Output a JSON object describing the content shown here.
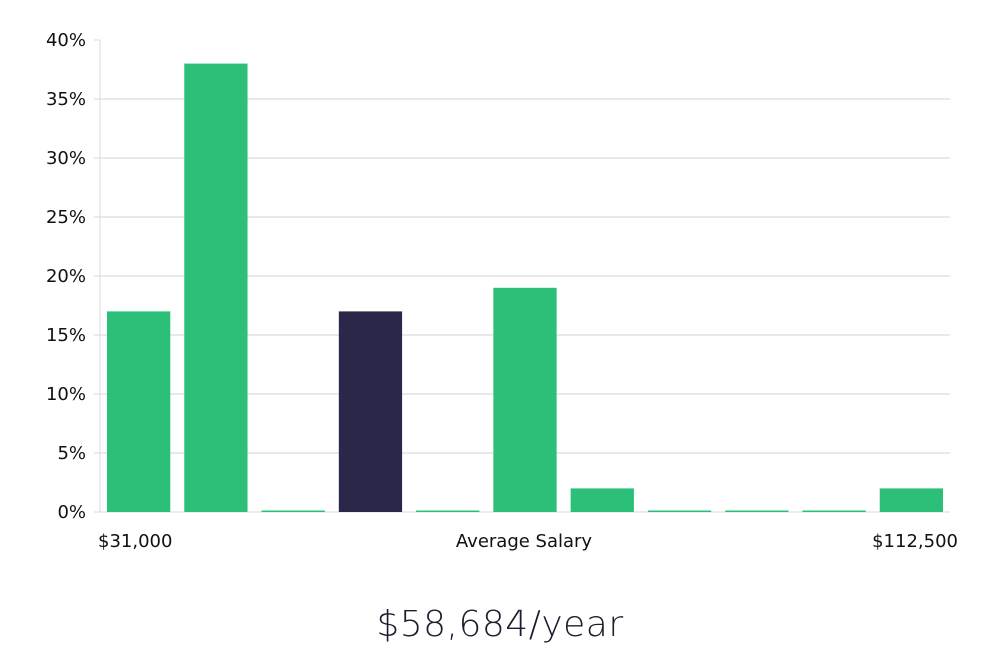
{
  "chart_data": {
    "type": "bar",
    "y_ticks": [
      "0%",
      "5%",
      "10%",
      "15%",
      "20%",
      "25%",
      "30%",
      "35%",
      "40%"
    ],
    "ylim": [
      0,
      40
    ],
    "values": [
      17,
      38,
      0,
      17,
      0,
      19,
      2,
      0,
      0,
      0,
      2
    ],
    "highlight_index": 3,
    "x_labels": {
      "min": "$31,000",
      "center": "Average Salary",
      "max": "$112,500"
    },
    "grid": true,
    "colors": {
      "bar": "#2bbf77",
      "highlight": "#2a2748",
      "grid": "#e2e2e2",
      "axis": "#d9d9d9"
    }
  },
  "salary_text": "$58,684/year"
}
